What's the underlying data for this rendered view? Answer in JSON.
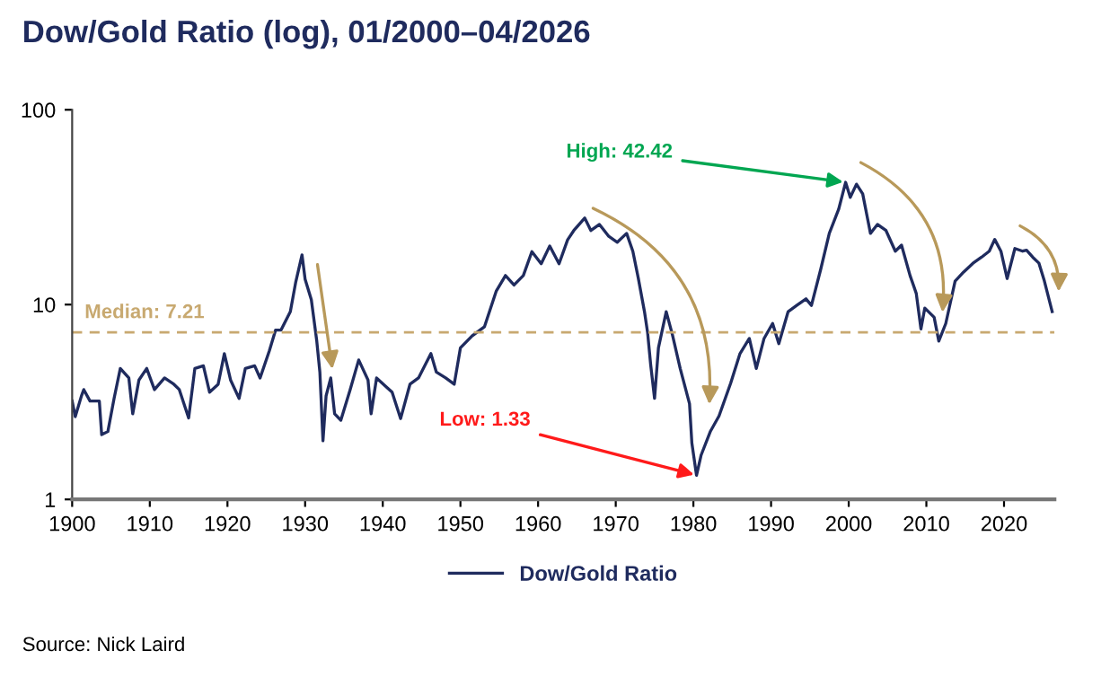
{
  "chart_data": {
    "type": "line",
    "title": "Dow/Gold Ratio (log), 01/2000–04/2026",
    "log": "y",
    "xlim": [
      1900,
      2026.5
    ],
    "xticks": [
      1900,
      1910,
      1920,
      1930,
      1940,
      1950,
      1960,
      1970,
      1980,
      1990,
      2000,
      2010,
      2020
    ],
    "ylim": [
      1,
      100
    ],
    "yticks": [
      1,
      10,
      100
    ],
    "grid": false,
    "legend": "bottom",
    "marker": "none",
    "line_style": "solid",
    "ref_lines": [
      {
        "axis": "y",
        "value": 7.21,
        "label": "Median: 7.21",
        "color": "#c8a970",
        "line_style": "dashed"
      }
    ],
    "annotations": [
      {
        "text": "High: 42.42",
        "x": 1999.6,
        "y": 42.42
      },
      {
        "text": "Low: 1.33",
        "x": 1980.4,
        "y": 1.33
      },
      "Source: Nick Laird"
    ],
    "series": [
      {
        "name": "Dow/Gold Ratio",
        "color": "#1f2b5e",
        "x": [
          1900,
          1900.4,
          1901.2,
          1901.5,
          1902.3,
          1903.5,
          1903.8,
          1904.6,
          1905.4,
          1906.2,
          1907.3,
          1907.8,
          1908.6,
          1909.6,
          1910.6,
          1911.9,
          1913.1,
          1913.8,
          1915,
          1915.8,
          1916.9,
          1917.7,
          1918.8,
          1919.6,
          1920.4,
          1921.5,
          1922.3,
          1923.5,
          1924.2,
          1925.4,
          1926.2,
          1926.9,
          1928.1,
          1928.8,
          1929.6,
          1930,
          1930.8,
          1931.5,
          1931.9,
          1932.3,
          1932.7,
          1933.3,
          1933.8,
          1934.6,
          1935.8,
          1936.9,
          1938.1,
          1938.5,
          1939.2,
          1940.4,
          1941.2,
          1942.3,
          1943.5,
          1944.6,
          1946.2,
          1946.9,
          1948.1,
          1949.2,
          1950,
          1951.5,
          1953.1,
          1954.6,
          1955.8,
          1956.9,
          1958.1,
          1959.2,
          1960.4,
          1961.5,
          1962.7,
          1963.8,
          1964.6,
          1966,
          1966.8,
          1967.9,
          1969.1,
          1970.2,
          1971.4,
          1972.2,
          1972.9,
          1973.7,
          1974.1,
          1974.5,
          1975,
          1975.5,
          1976.5,
          1977.3,
          1978.3,
          1979.5,
          1979.8,
          1980.4,
          1981,
          1982.2,
          1983.3,
          1984.8,
          1986,
          1987.2,
          1988.1,
          1989.1,
          1990.2,
          1991,
          1992.2,
          1993.3,
          1994.5,
          1995.2,
          1996.4,
          1997.5,
          1998.7,
          1999.6,
          2000.2,
          2001,
          2001.8,
          2002.8,
          2003.7,
          2004.8,
          2006,
          2006.8,
          2007.9,
          2008.7,
          2009.3,
          2009.8,
          2011,
          2011.6,
          2012.5,
          2013.7,
          2014.8,
          2016,
          2017.1,
          2018.1,
          2018.8,
          2019.6,
          2020.4,
          2021.4,
          2022.4,
          2022.9,
          2023.7,
          2024.5,
          2025.2,
          2026.2
        ],
        "values": [
          3.2,
          2.66,
          3.4,
          3.66,
          3.2,
          3.2,
          2.15,
          2.23,
          3.3,
          4.7,
          4.2,
          2.75,
          4.1,
          4.7,
          3.66,
          4.2,
          3.9,
          3.66,
          2.62,
          4.7,
          4.85,
          3.55,
          3.9,
          5.6,
          4.1,
          3.3,
          4.7,
          4.85,
          4.2,
          5.8,
          7.4,
          7.4,
          9.2,
          13.1,
          18.0,
          13.5,
          10.6,
          6.5,
          4.5,
          2.0,
          3.4,
          4.2,
          2.75,
          2.55,
          3.66,
          5.2,
          4.1,
          2.75,
          4.2,
          3.8,
          3.55,
          2.6,
          3.9,
          4.2,
          5.6,
          4.5,
          4.2,
          3.9,
          6.0,
          6.9,
          7.7,
          11.7,
          14.1,
          12.6,
          14.1,
          18.7,
          16.2,
          20.0,
          16.2,
          21.5,
          24.0,
          27.8,
          24,
          25.8,
          22.4,
          20.9,
          23.2,
          18.8,
          13.7,
          9.2,
          7.2,
          4.9,
          3.3,
          6.0,
          9.2,
          7.0,
          4.7,
          3.1,
          1.95,
          1.33,
          1.69,
          2.24,
          2.68,
          3.95,
          5.6,
          6.7,
          4.7,
          6.7,
          8.0,
          6.3,
          9.2,
          9.9,
          10.7,
          9.9,
          15.2,
          23.2,
          30.8,
          42.42,
          35.5,
          41.5,
          37,
          23.2,
          25.8,
          24,
          18.8,
          20.2,
          14.1,
          11.4,
          7.5,
          9.6,
          8.6,
          6.5,
          8.0,
          13.2,
          14.7,
          16.3,
          17.5,
          18.8,
          21.6,
          18.8,
          13.6,
          19.4,
          18.8,
          19,
          17.5,
          16.3,
          13.2,
          9.2
        ]
      }
    ]
  }
}
